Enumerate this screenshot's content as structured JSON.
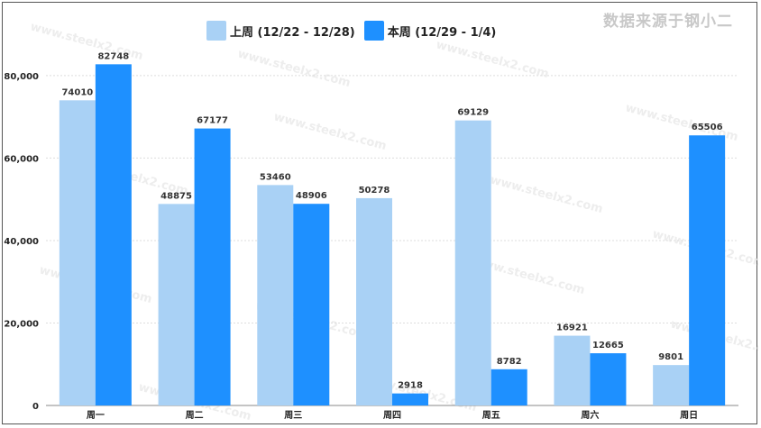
{
  "source_note": "数据来源于钢小二",
  "watermark": "www.steelx2.com",
  "colors": {
    "last_week": "#a9d1f5",
    "this_week": "#1e90ff"
  },
  "chart_data": {
    "type": "bar",
    "categories": [
      "周一",
      "周二",
      "周三",
      "周四",
      "周五",
      "周六",
      "周日"
    ],
    "series": [
      {
        "name": "上周 (12/22 - 12/28)",
        "values": [
          74010,
          48875,
          53460,
          50278,
          69129,
          16921,
          9801
        ]
      },
      {
        "name": "本周 (12/29 - 1/4)",
        "values": [
          82748,
          67177,
          48906,
          2918,
          8782,
          12665,
          65506
        ]
      }
    ],
    "yticks": [
      "0",
      "20,000",
      "40,000",
      "60,000",
      "80,000"
    ],
    "ytick_values": [
      0,
      20000,
      40000,
      60000,
      80000
    ],
    "ylim": [
      0,
      92000
    ],
    "legend_position": "top-center",
    "grid": true
  }
}
